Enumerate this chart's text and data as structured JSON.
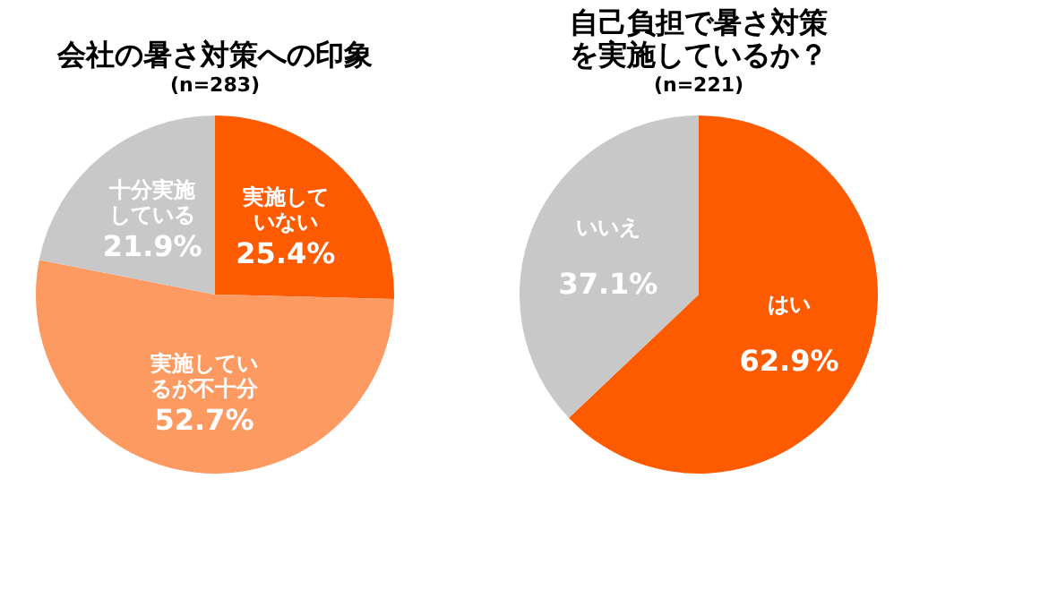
{
  "chart_data": [
    {
      "type": "pie",
      "title": "会社の暑さ対策への印象",
      "subtitle": "(n=283)",
      "categories": [
        "実施していない",
        "実施しているが不十分",
        "十分実施している"
      ],
      "values": [
        25.4,
        52.7,
        21.9
      ],
      "colors": [
        "#fe5a00",
        "#fd9a62",
        "#c8c8c8"
      ],
      "value_labels": [
        "25.4%",
        "52.7%",
        "21.9%"
      ],
      "legend": false
    },
    {
      "type": "pie",
      "title": "自己負担で暑さ対策を実施しているか？",
      "subtitle": "(n=221)",
      "categories": [
        "はい",
        "いいえ"
      ],
      "values": [
        62.9,
        37.1
      ],
      "colors": [
        "#fe5a00",
        "#c8c8c8"
      ],
      "value_labels": [
        "62.9%",
        "37.1%"
      ],
      "legend": false
    }
  ]
}
